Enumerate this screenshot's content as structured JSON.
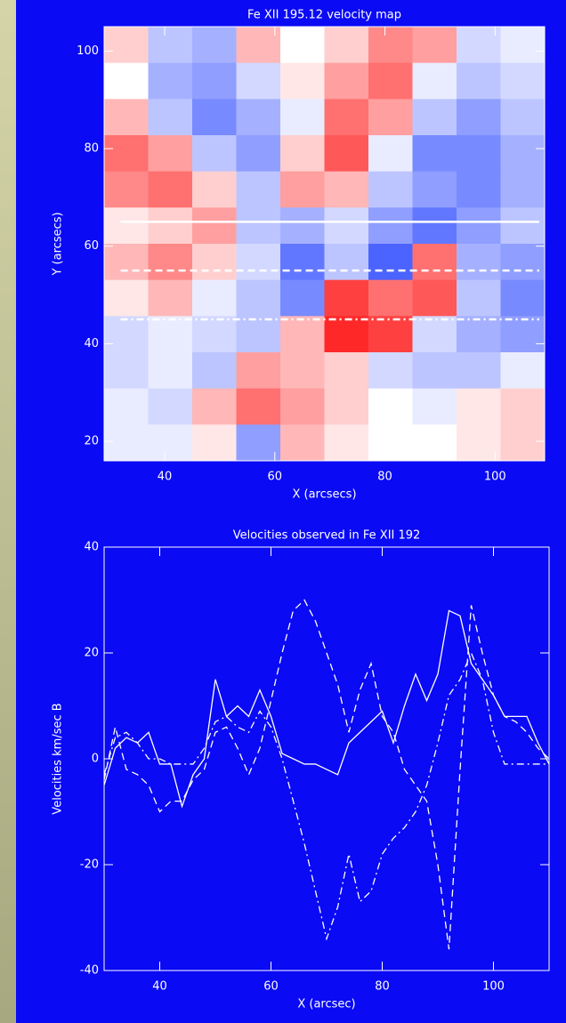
{
  "chart_data": [
    {
      "type": "heatmap",
      "title": "Fe XII 195.12 velocity map",
      "xlabel": "X (arcsecs)",
      "ylabel": "Y (arcsecs)",
      "xlim": [
        29,
        109
      ],
      "ylim": [
        16,
        105
      ],
      "xticks": [
        40,
        60,
        80,
        100
      ],
      "yticks": [
        20,
        40,
        60,
        80,
        100
      ],
      "zlim": [
        -10,
        10
      ],
      "colors": [
        "#1e3cff",
        "#ffffff",
        "#ff1010"
      ],
      "z": [
        [
          2,
          -3,
          -4,
          3,
          0,
          2,
          5,
          4,
          -2,
          -1
        ],
        [
          0,
          -4,
          -5,
          -2,
          1,
          4,
          6,
          -1,
          -3,
          -2
        ],
        [
          3,
          -3,
          -6,
          -4,
          -1,
          6,
          4,
          -3,
          -5,
          -3
        ],
        [
          6,
          4,
          -3,
          -5,
          2,
          7,
          -1,
          -6,
          -6,
          -4
        ],
        [
          5,
          6,
          2,
          -3,
          4,
          3,
          -3,
          -5,
          -6,
          -4
        ],
        [
          1,
          2,
          4,
          -3,
          -4,
          -2,
          -5,
          -7,
          -5,
          -3
        ],
        [
          3,
          5,
          2,
          -2,
          -7,
          -3,
          -8,
          6,
          -4,
          -5
        ],
        [
          1,
          3,
          -1,
          -3,
          -6,
          8,
          6,
          7,
          -3,
          -6
        ],
        [
          -2,
          -1,
          -2,
          -3,
          3,
          9,
          8,
          -2,
          -4,
          -5
        ],
        [
          -2,
          -1,
          -3,
          4,
          3,
          2,
          -2,
          -3,
          -3,
          -1
        ],
        [
          -1,
          -2,
          3,
          6,
          4,
          2,
          0,
          -1,
          1,
          2
        ],
        [
          -1,
          -1,
          1,
          -5,
          3,
          1,
          0,
          0,
          1,
          2
        ]
      ],
      "lines": [
        {
          "y": 65,
          "x": [
            32,
            108
          ],
          "dash": "solid"
        },
        {
          "y": 55,
          "x": [
            32,
            108
          ],
          "dash": "dashed"
        },
        {
          "y": 45,
          "x": [
            32,
            108
          ],
          "dash": "dashdot"
        }
      ]
    },
    {
      "type": "line",
      "title": "Velocities observed in Fe XII 192",
      "xlabel": "X (arcsec)",
      "ylabel": "Velocities km/sec B",
      "xlim": [
        30,
        110
      ],
      "ylim": [
        -40,
        40
      ],
      "xticks": [
        40,
        60,
        80,
        100
      ],
      "yticks": [
        -40,
        -20,
        0,
        20,
        40
      ],
      "x": [
        30,
        32,
        34,
        36,
        38,
        40,
        42,
        44,
        46,
        48,
        50,
        52,
        54,
        56,
        58,
        60,
        62,
        64,
        66,
        68,
        70,
        72,
        74,
        76,
        78,
        80,
        82,
        84,
        86,
        88,
        90,
        92,
        94,
        96,
        98,
        100,
        102,
        104,
        106,
        108,
        110
      ],
      "series": [
        {
          "dash": "solid",
          "color": "#ffffff",
          "values": [
            -5,
            2,
            4,
            3,
            5,
            -1,
            -1,
            -9,
            -3,
            0,
            15,
            8,
            10,
            8,
            13,
            8,
            1,
            0,
            -1,
            -1,
            -2,
            -3,
            3,
            5,
            7,
            9,
            3,
            10,
            16,
            11,
            16,
            28,
            27,
            18,
            15,
            12,
            8,
            8,
            8,
            3,
            -1
          ]
        },
        {
          "dash": "dashed",
          "color": "#ffffff",
          "values": [
            -4,
            6,
            -2,
            -3,
            -5,
            -10,
            -8,
            -8,
            -4,
            -2,
            5,
            6,
            2,
            -3,
            2,
            11,
            20,
            28,
            30,
            26,
            20,
            14,
            5,
            13,
            18,
            8,
            5,
            -2,
            -5,
            -8,
            -20,
            -36,
            -2,
            29,
            20,
            12,
            8,
            7,
            5,
            2,
            0
          ]
        },
        {
          "dash": "dashdot",
          "color": "#ffffff",
          "values": [
            -3,
            4,
            5,
            3,
            0,
            0,
            -1,
            -1,
            -1,
            2,
            7,
            8,
            6,
            5,
            9,
            6,
            0,
            -8,
            -16,
            -25,
            -34,
            -28,
            -18,
            -27,
            -25,
            -18,
            -15,
            -13,
            -10,
            -5,
            3,
            12,
            15,
            20,
            15,
            5,
            -1,
            -1,
            -1,
            -1,
            -1
          ]
        }
      ]
    }
  ]
}
